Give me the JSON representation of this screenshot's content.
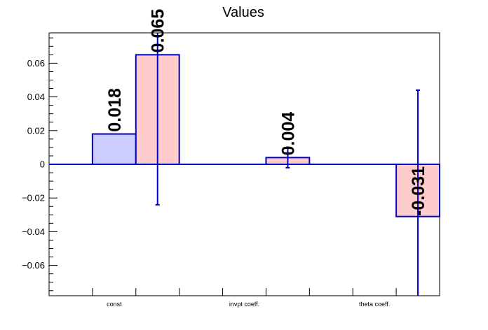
{
  "chart_data": {
    "type": "bar",
    "title": "Values",
    "xlabel": "",
    "ylabel": "",
    "categories": [
      "const",
      "invpt coeff.",
      "theta coeff."
    ],
    "ylim": [
      -0.078,
      0.078
    ],
    "yticks": [
      -0.06,
      -0.04,
      -0.02,
      0,
      0.02,
      0.04,
      0.06
    ],
    "ytick_labels": [
      "−0.06",
      "−0.04",
      "−0.02",
      "0",
      "0.02",
      "0.04",
      "0.06"
    ],
    "series": [
      {
        "fill": "#ccccff",
        "stroke": "#0000cc",
        "values": [
          0.018,
          null,
          null
        ],
        "labels": [
          "0.018",
          "",
          ""
        ],
        "errors": [
          null,
          null,
          null
        ]
      },
      {
        "fill": "#ffcccc",
        "stroke": "#0000cc",
        "values": [
          0.065,
          0.004,
          -0.031
        ],
        "labels": [
          "0.065",
          "0.004",
          "-0.031"
        ],
        "errors": [
          0.089,
          0.006,
          0.075
        ]
      }
    ],
    "grid": false,
    "legend": "none"
  }
}
